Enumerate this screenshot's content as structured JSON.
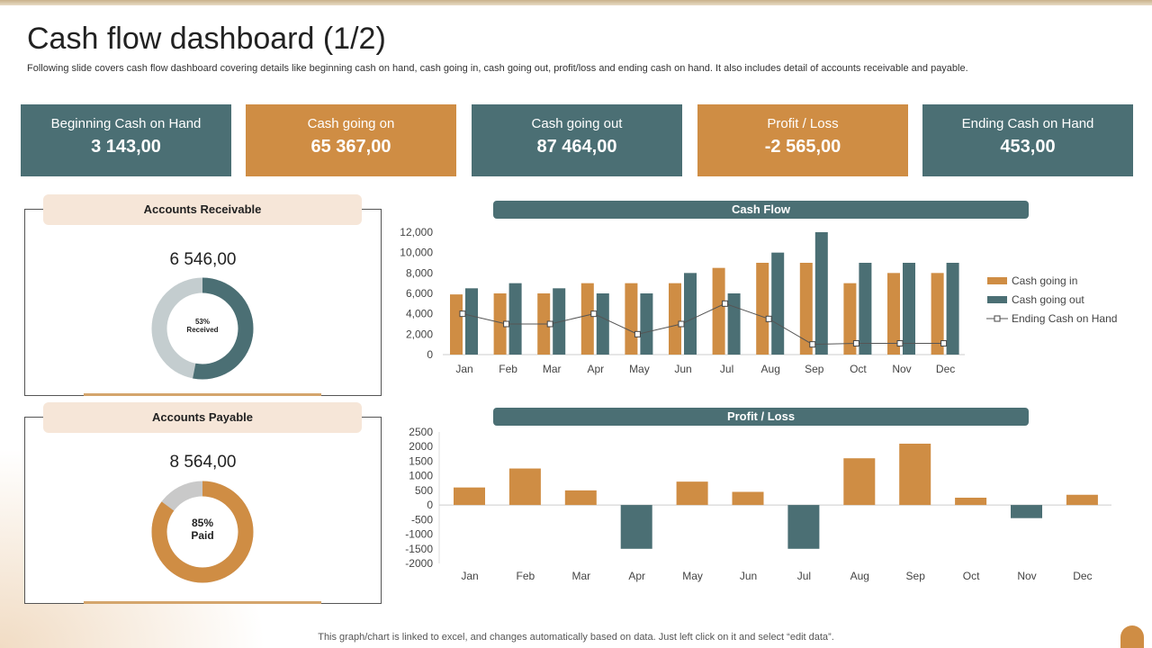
{
  "title": "Cash flow dashboard (1/2)",
  "subtitle": "Following slide covers cash flow dashboard covering details like beginning cash on hand, cash going in, cash going out, profit/loss and ending cash on hand. It also includes detail of accounts receivable and payable.",
  "kpis": [
    {
      "label": "Beginning Cash on Hand",
      "value": "3 143,00",
      "color": "#4b6f74"
    },
    {
      "label": "Cash going on",
      "value": "65 367,00",
      "color": "#cf8d44"
    },
    {
      "label": "Cash going out",
      "value": "87 464,00",
      "color": "#4b6f74"
    },
    {
      "label": "Profit / Loss",
      "value": "-2 565,00",
      "color": "#cf8d44"
    },
    {
      "label": "Ending Cash on Hand",
      "value": "453,00",
      "color": "#4b6f74"
    }
  ],
  "receivable": {
    "title": "Accounts Receivable",
    "value": "6 546,00",
    "percent": 53,
    "pct_label": "53%",
    "label": "Received"
  },
  "payable": {
    "title": "Accounts Payable",
    "value": "8 564,00",
    "percent": 85,
    "pct_label": "85%",
    "label": "Paid"
  },
  "footer": "This graph/chart is linked to excel,  and changes automatically based on data. Just left click on it and select “edit data”.",
  "chart_data": [
    {
      "type": "bar",
      "title": "Cash Flow",
      "categories": [
        "Jan",
        "Feb",
        "Mar",
        "Apr",
        "May",
        "Jun",
        "Jul",
        "Aug",
        "Sep",
        "Oct",
        "Nov",
        "Dec"
      ],
      "ylim": [
        0,
        12000
      ],
      "yticks": [
        "0",
        "2,000",
        "4,000",
        "6,000",
        "8,000",
        "10,000",
        "12,000"
      ],
      "legend": "right",
      "series": [
        {
          "name": "Cash going in",
          "type": "bar",
          "color": "#cf8d44",
          "values": [
            5900,
            6000,
            6000,
            7000,
            7000,
            7000,
            8500,
            9000,
            9000,
            7000,
            8000,
            8000
          ]
        },
        {
          "name": "Cash going out",
          "type": "bar",
          "color": "#4b6f74",
          "values": [
            6500,
            7000,
            6500,
            6000,
            6000,
            8000,
            6000,
            10000,
            12000,
            9000,
            9000,
            9000
          ]
        },
        {
          "name": "Ending Cash on Hand",
          "type": "line",
          "color": "#555555",
          "values": [
            4000,
            3000,
            3000,
            4000,
            2000,
            3000,
            5000,
            3500,
            1000,
            1100,
            1100,
            1100
          ]
        }
      ]
    },
    {
      "type": "bar",
      "title": "Profit  / Loss",
      "categories": [
        "Jan",
        "Feb",
        "Mar",
        "Apr",
        "May",
        "Jun",
        "Jul",
        "Aug",
        "Sep",
        "Oct",
        "Nov",
        "Dec"
      ],
      "ylim": [
        -2000,
        2500
      ],
      "yticks": [
        "-2000",
        "-1500",
        "-1000",
        "-500",
        "0",
        "500",
        "1000",
        "1500",
        "2000",
        "2500"
      ],
      "positive_color": "#cf8d44",
      "negative_color": "#4b6f74",
      "values": [
        600,
        1250,
        500,
        -1500,
        800,
        450,
        -1500,
        1600,
        2100,
        250,
        -450,
        350
      ]
    }
  ]
}
